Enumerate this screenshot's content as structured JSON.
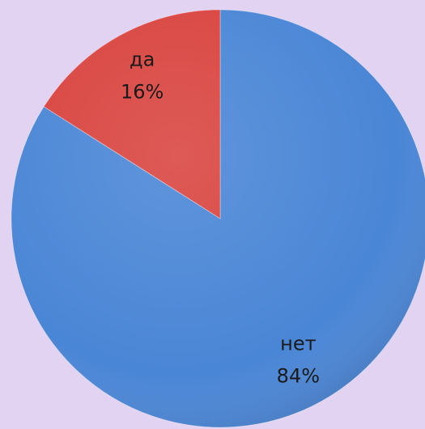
{
  "chart_data": {
    "type": "pie",
    "categories": [
      "нет",
      "да"
    ],
    "values": [
      84,
      16
    ],
    "value_labels": [
      "84%",
      "16%"
    ],
    "colors": [
      "#4a86d6",
      "#d9443f"
    ]
  }
}
